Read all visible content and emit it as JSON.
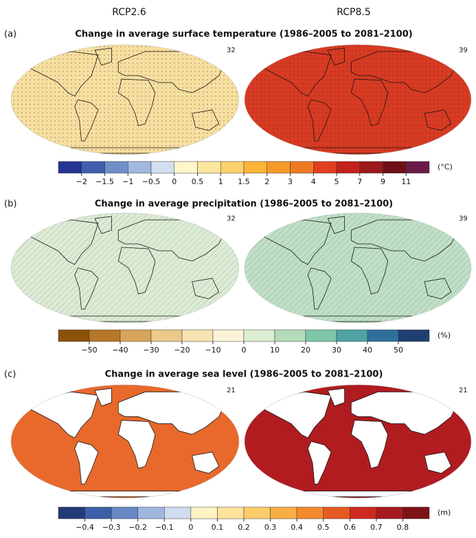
{
  "columns": [
    "RCP2.6",
    "RCP8.5"
  ],
  "panels": [
    {
      "label": "(a)",
      "title": "Change in average surface temperature (1986–2005 to 2081–2100)",
      "model_counts": [
        32,
        39
      ],
      "map_fill": [
        "#f7dfa0",
        "#d83a22"
      ],
      "colorbar": {
        "unit": "(°C)",
        "colors": [
          "#253494",
          "#3f5fae",
          "#6f8fc8",
          "#a2b9df",
          "#d3dff0",
          "#fff6cc",
          "#fde6a0",
          "#fcd16b",
          "#fbb536",
          "#f59a2b",
          "#ee7b23",
          "#e0401f",
          "#c4201d",
          "#9c1a1a",
          "#6e1016",
          "#6b1a4a"
        ],
        "ticks": [
          {
            "value": -2,
            "label": "−2"
          },
          {
            "value": -1.5,
            "label": "−1.5"
          },
          {
            "value": -1,
            "label": "−1"
          },
          {
            "value": -0.5,
            "label": "−0.5"
          },
          0,
          0.5,
          1,
          1.5,
          2,
          3,
          4,
          5,
          7,
          9,
          11
        ]
      }
    },
    {
      "label": "(b)",
      "title": "Change in average precipitation (1986–2005 to 2081–2100)",
      "model_counts": [
        32,
        39
      ],
      "map_fill": [
        "#dcecd4",
        "#bfe0c6"
      ],
      "colorbar": {
        "unit": "(%)",
        "colors": [
          "#8c510a",
          "#b8762a",
          "#d8a35a",
          "#ecc98a",
          "#f6e3b3",
          "#fcf4d8",
          "#dceed3",
          "#b4dcba",
          "#7fc6a8",
          "#4fa3a3",
          "#2f6f9c",
          "#1f3f70"
        ],
        "ticks": [
          {
            "value": -50,
            "label": "−50"
          },
          {
            "value": -40,
            "label": "−40"
          },
          {
            "value": -30,
            "label": "−30"
          },
          {
            "value": -20,
            "label": "−20"
          },
          {
            "value": -10,
            "label": "−10"
          },
          0,
          10,
          20,
          30,
          40,
          50
        ]
      }
    },
    {
      "label": "(c)",
      "title": "Change in average sea level (1986–2005 to 2081–2100)",
      "model_counts": [
        21,
        21
      ],
      "map_fill": [
        "#e8692b",
        "#b01c20"
      ],
      "colorbar": {
        "unit": "(m)",
        "colors": [
          "#243a78",
          "#3b5fa8",
          "#6788c4",
          "#9fb6de",
          "#cfdcef",
          "#fff3c4",
          "#fde39b",
          "#fbcc6a",
          "#f8ae45",
          "#f28a2e",
          "#e65a23",
          "#cd2a1f",
          "#a51a1f",
          "#7d1317"
        ],
        "ticks": [
          {
            "value": -0.4,
            "label": "−0.4"
          },
          {
            "value": -0.3,
            "label": "−0.3"
          },
          {
            "value": -0.2,
            "label": "−0.2"
          },
          {
            "value": -0.1,
            "label": "−0.1"
          },
          0,
          0.1,
          0.2,
          0.3,
          0.4,
          0.5,
          0.6,
          0.7,
          0.8
        ]
      }
    }
  ]
}
